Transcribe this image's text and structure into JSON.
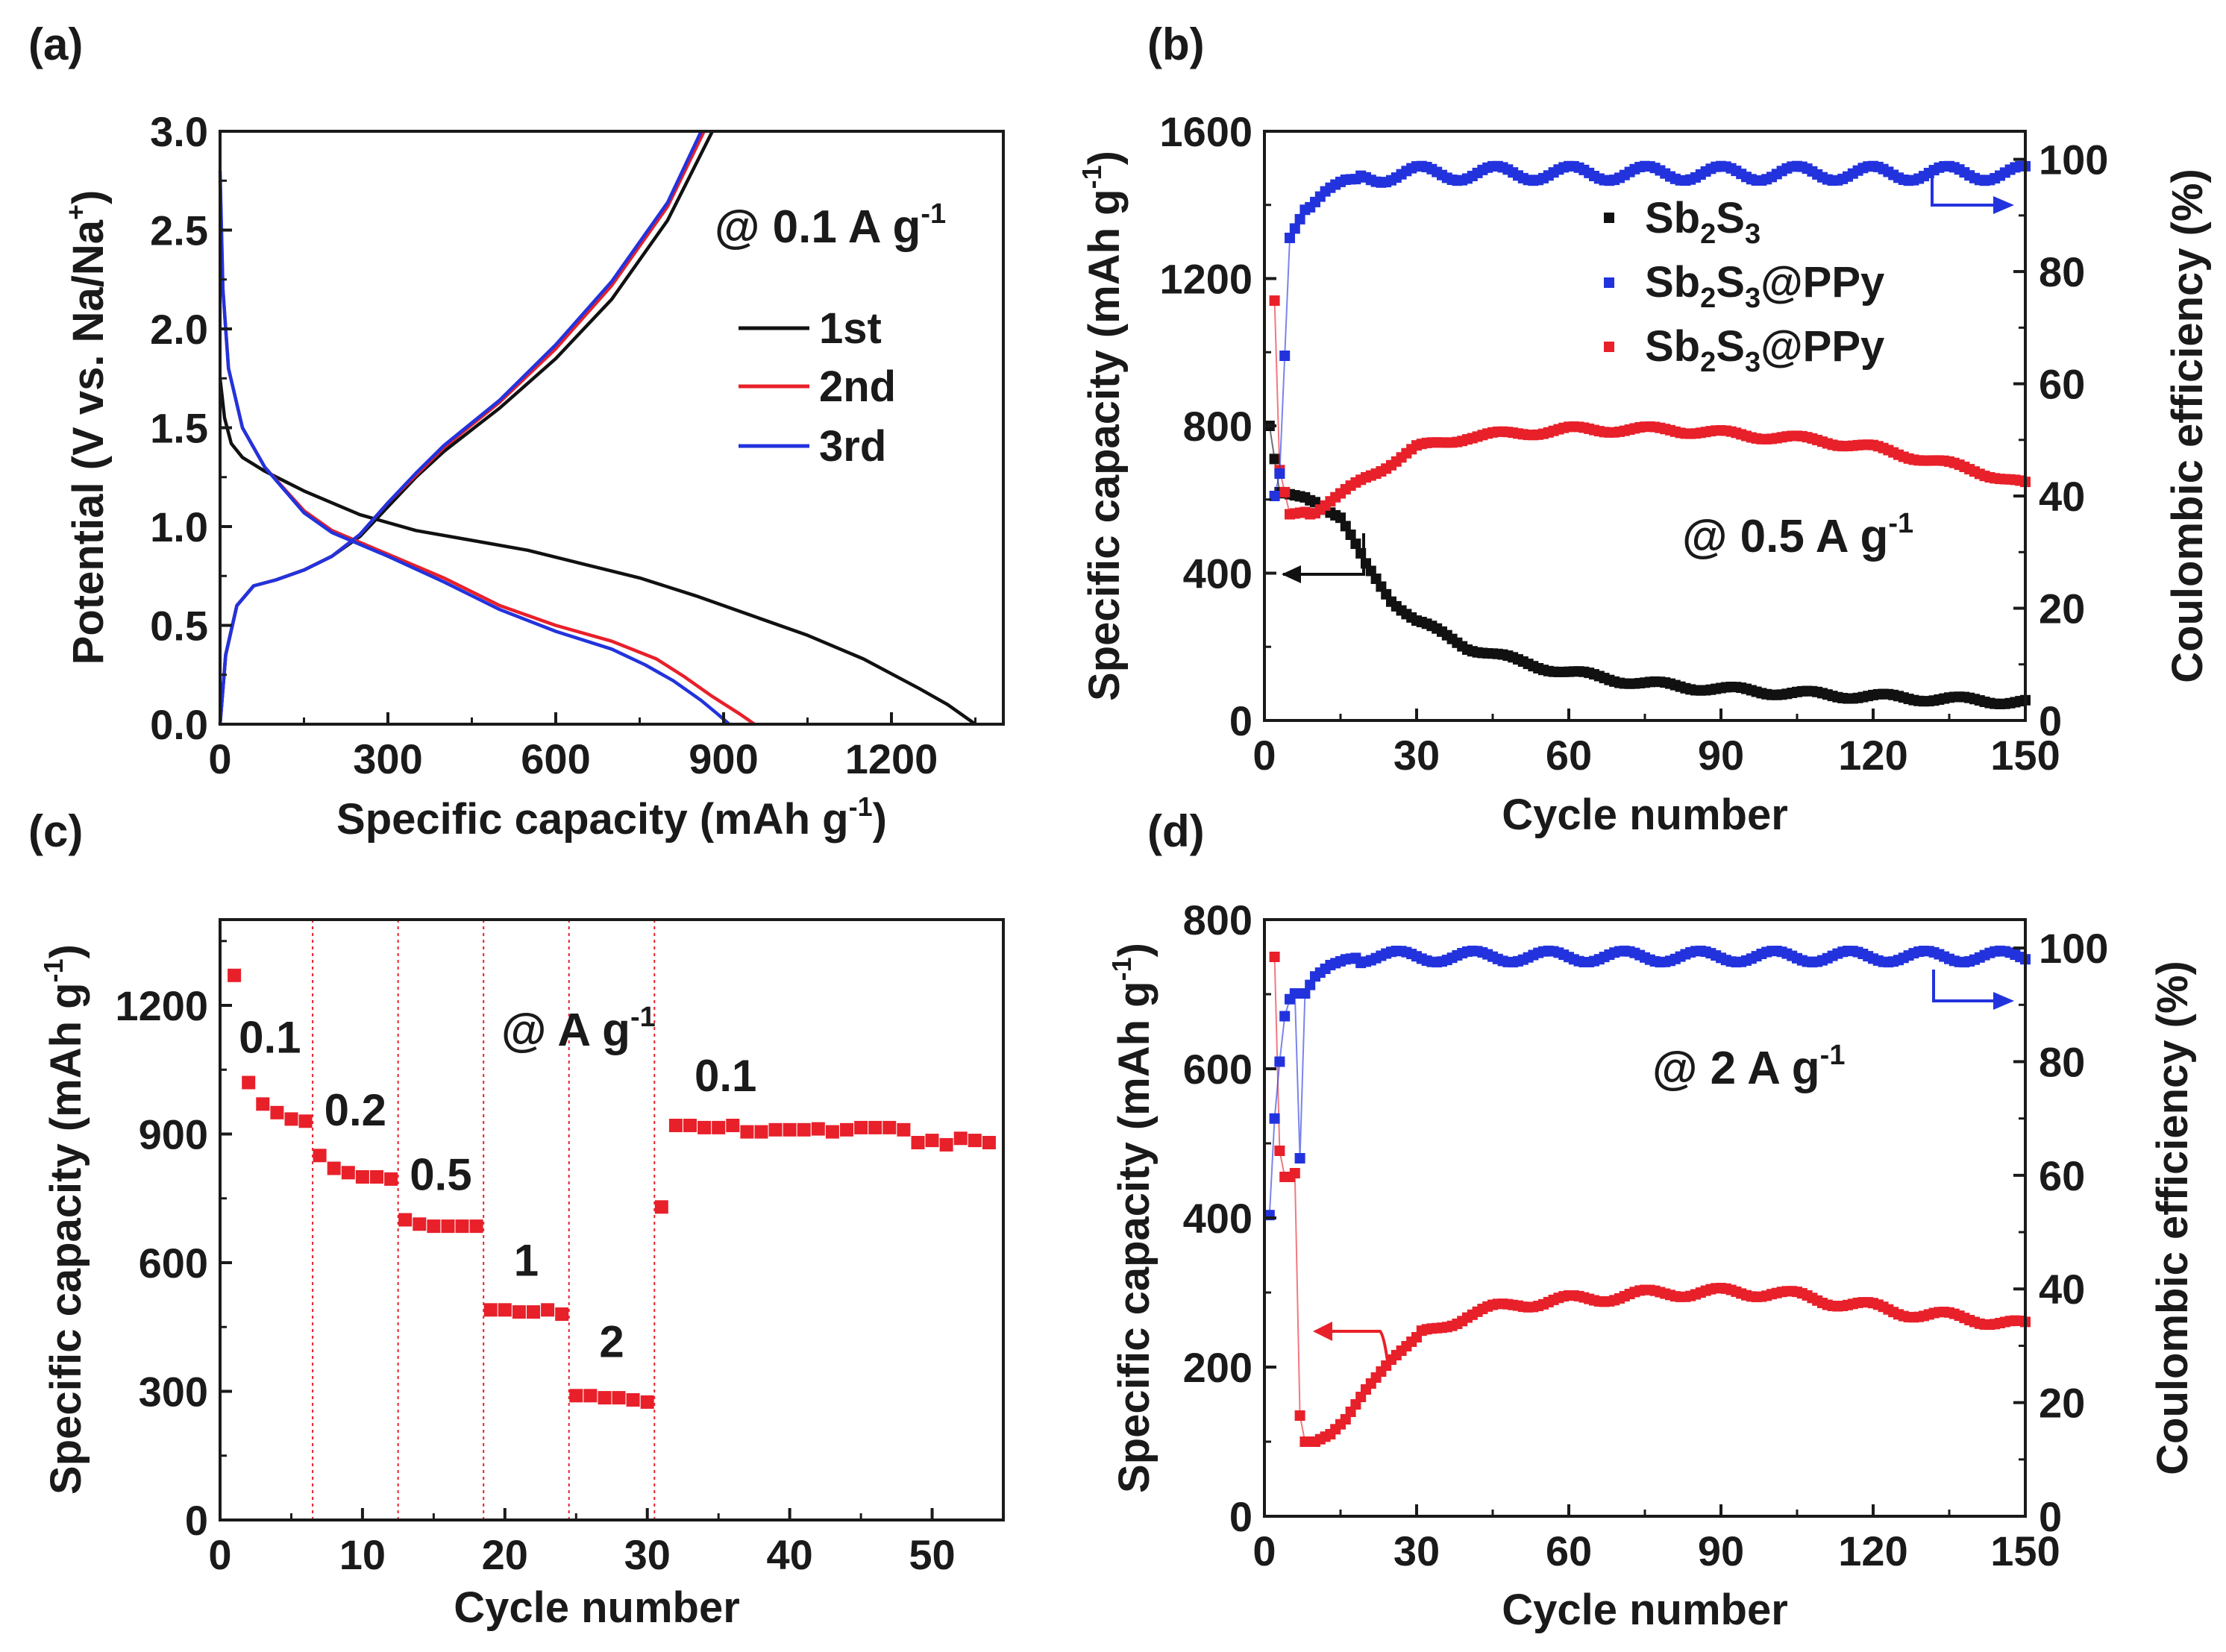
{
  "chart_data": [
    {
      "panel": "(a)",
      "type": "line",
      "xlabel": "Specific capacity (mAh g",
      "xlabel_sup": "-1",
      "xlabel_end": ")",
      "ylabel": "Potential (V vs. Na/Na",
      "ylabel_sup": "+",
      "ylabel_end": ")",
      "xlim": [
        0,
        1400
      ],
      "ylim": [
        0,
        3.0
      ],
      "xticks": [
        0,
        300,
        600,
        900,
        1200
      ],
      "yticks": [
        0.0,
        0.5,
        1.0,
        1.5,
        2.0,
        2.5,
        3.0
      ],
      "annotation": "@ 0.1 A g",
      "annotation_sup": "-1",
      "legend": [
        "1st",
        "2nd",
        "3rd"
      ],
      "series": [
        {
          "name": "1st discharge",
          "legend_label": "1st",
          "color": "#111111",
          "x": [
            0,
            8,
            20,
            40,
            80,
            150,
            250,
            350,
            450,
            550,
            650,
            750,
            850,
            950,
            1050,
            1150,
            1250,
            1300,
            1350
          ],
          "y": [
            1.75,
            1.55,
            1.42,
            1.35,
            1.28,
            1.18,
            1.06,
            0.98,
            0.93,
            0.88,
            0.81,
            0.74,
            0.65,
            0.55,
            0.45,
            0.33,
            0.18,
            0.1,
            0.0
          ]
        },
        {
          "name": "1st charge",
          "legend_label": "1st",
          "color": "#111111",
          "x": [
            0,
            10,
            30,
            60,
            100,
            150,
            200,
            250,
            300,
            350,
            400,
            500,
            600,
            700,
            800,
            880
          ],
          "y": [
            0.0,
            0.35,
            0.6,
            0.7,
            0.73,
            0.78,
            0.85,
            0.95,
            1.1,
            1.25,
            1.38,
            1.6,
            1.85,
            2.15,
            2.55,
            3.0
          ]
        },
        {
          "name": "2nd discharge",
          "legend_label": "2nd",
          "color": "#e8202a",
          "x": [
            0,
            5,
            15,
            40,
            80,
            150,
            200,
            250,
            300,
            400,
            500,
            600,
            700,
            780,
            830,
            880,
            930,
            955
          ],
          "y": [
            2.75,
            2.2,
            1.8,
            1.5,
            1.3,
            1.08,
            0.98,
            0.92,
            0.86,
            0.74,
            0.6,
            0.5,
            0.42,
            0.33,
            0.24,
            0.14,
            0.05,
            0.0
          ]
        },
        {
          "name": "2nd charge",
          "legend_label": "2nd",
          "color": "#e8202a",
          "x": [
            0,
            10,
            30,
            60,
            100,
            150,
            200,
            250,
            300,
            350,
            400,
            500,
            600,
            700,
            800,
            865
          ],
          "y": [
            0.0,
            0.35,
            0.6,
            0.7,
            0.73,
            0.78,
            0.85,
            0.96,
            1.12,
            1.26,
            1.4,
            1.63,
            1.9,
            2.22,
            2.62,
            3.0
          ]
        },
        {
          "name": "3rd discharge",
          "legend_label": "3rd",
          "color": "#2233dd",
          "x": [
            0,
            5,
            15,
            40,
            80,
            150,
            200,
            250,
            300,
            400,
            500,
            600,
            700,
            760,
            810,
            860,
            890,
            910
          ],
          "y": [
            2.8,
            2.2,
            1.8,
            1.5,
            1.3,
            1.07,
            0.97,
            0.91,
            0.85,
            0.72,
            0.58,
            0.47,
            0.38,
            0.3,
            0.22,
            0.12,
            0.05,
            0.0
          ]
        },
        {
          "name": "3rd charge",
          "legend_label": "3rd",
          "color": "#2233dd",
          "x": [
            0,
            10,
            30,
            60,
            100,
            150,
            200,
            250,
            300,
            350,
            400,
            500,
            600,
            700,
            800,
            860
          ],
          "y": [
            0.0,
            0.35,
            0.6,
            0.7,
            0.73,
            0.78,
            0.85,
            0.96,
            1.12,
            1.27,
            1.41,
            1.64,
            1.92,
            2.24,
            2.64,
            3.0
          ]
        }
      ]
    },
    {
      "panel": "(b)",
      "type": "scatter",
      "xlabel": "Cycle number",
      "ylabel": "Specific capacity (mAh g",
      "ylabel_sup": "-1",
      "ylabel_end": ")",
      "y2label": "Coulombic efficiency (%)",
      "xlim": [
        0,
        150
      ],
      "ylim": [
        0,
        1600
      ],
      "y2lim": [
        0,
        105
      ],
      "xticks": [
        0,
        30,
        60,
        90,
        120,
        150
      ],
      "yticks": [
        0,
        400,
        800,
        1200,
        1600
      ],
      "y2ticks": [
        0,
        20,
        40,
        60,
        80,
        100
      ],
      "annotation": "@ 0.5 A g",
      "annotation_sup": "-1",
      "legend": [
        "Sb2S3",
        "Sb2S3@PPy",
        "Sb2S3@PPy"
      ],
      "series": [
        {
          "name": "Sb2S3",
          "legend": {
            "base": "Sb",
            "s1": "2",
            "mid": "S",
            "s2": "3",
            "tail": ""
          },
          "color": "#111111",
          "axis": "left",
          "keyframes": {
            "x": [
              1,
              3,
              10,
              15,
              20,
              25,
              30,
              40,
              50,
              60,
              75,
              90,
              110,
              130,
              150
            ],
            "y": [
              800,
              620,
              600,
              550,
              420,
              330,
              270,
              200,
              160,
              130,
              100,
              85,
              70,
              60,
              50
            ]
          }
        },
        {
          "name": "Sb2S3@PPy capacity",
          "legend": {
            "base": "Sb",
            "s1": "2",
            "mid": "S",
            "s2": "3",
            "tail": "@PPy"
          },
          "color": "#e8202a",
          "axis": "left",
          "keyframes": {
            "x": [
              2,
              3,
              5,
              10,
              15,
              20,
              25,
              30,
              40,
              50,
              60,
              70,
              80,
              90,
              100,
              110,
              120,
              130,
              140,
              150
            ],
            "y": [
              1140,
              680,
              560,
              570,
              610,
              660,
              700,
              740,
              770,
              780,
              790,
              790,
              790,
              780,
              770,
              760,
              740,
              710,
              680,
              640
            ]
          }
        },
        {
          "name": "Sb2S3@PPy CE",
          "legend": {
            "base": "Sb",
            "s1": "2",
            "mid": "S",
            "s2": "3",
            "tail": "@PPy"
          },
          "color": "#2233dd",
          "axis": "right",
          "keyframes": {
            "x": [
              2,
              3,
              5,
              8,
              12,
              16,
              20,
              30,
              150
            ],
            "y": [
              40,
              44,
              86,
              91,
              94,
              96,
              97,
              97.5,
              97.5
            ]
          }
        }
      ]
    },
    {
      "panel": "(c)",
      "type": "scatter",
      "xlabel": "Cycle number",
      "ylabel": "Specific capacity (mAh g",
      "ylabel_sup": "-1",
      "ylabel_end": ")",
      "xlim": [
        0,
        55
      ],
      "ylim": [
        0,
        1400
      ],
      "xticks": [
        0,
        10,
        20,
        30,
        40,
        50
      ],
      "yticks": [
        0,
        300,
        600,
        900,
        1200
      ],
      "annotation": "@ A g",
      "annotation_sup": "-1",
      "rate_labels": [
        {
          "text": "0.1",
          "x": 3.5,
          "y": 1090
        },
        {
          "text": "0.2",
          "x": 9.5,
          "y": 920
        },
        {
          "text": "0.5",
          "x": 15.5,
          "y": 770
        },
        {
          "text": "1",
          "x": 21.5,
          "y": 570
        },
        {
          "text": "2",
          "x": 27.5,
          "y": 380
        },
        {
          "text": "0.1",
          "x": 35.5,
          "y": 1000
        }
      ],
      "dividers": [
        6.5,
        12.5,
        18.5,
        24.5,
        30.5
      ],
      "series": [
        {
          "name": "Sb2S3@PPy",
          "color": "#e8202a",
          "x": [
            1,
            2,
            3,
            4,
            5,
            6,
            7,
            8,
            9,
            10,
            11,
            12,
            13,
            14,
            15,
            16,
            17,
            18,
            19,
            20,
            21,
            22,
            23,
            24,
            25,
            26,
            27,
            28,
            29,
            30,
            31,
            32,
            33,
            34,
            35,
            36,
            37,
            38,
            39,
            40,
            41,
            42,
            43,
            44,
            45,
            46,
            47,
            48,
            49,
            50,
            51,
            52,
            53,
            54
          ],
          "y": [
            1270,
            1020,
            970,
            950,
            935,
            930,
            850,
            820,
            810,
            800,
            800,
            795,
            700,
            690,
            685,
            685,
            685,
            685,
            490,
            490,
            485,
            485,
            490,
            480,
            290,
            290,
            285,
            285,
            280,
            275,
            730,
            920,
            920,
            915,
            915,
            920,
            905,
            905,
            910,
            910,
            910,
            912,
            905,
            910,
            915,
            915,
            915,
            910,
            880,
            885,
            875,
            890,
            885,
            880
          ]
        }
      ]
    },
    {
      "panel": "(d)",
      "type": "scatter",
      "xlabel": "Cycle number",
      "ylabel": "Specific capacity (mAh g",
      "ylabel_sup": "-1",
      "ylabel_end": ")",
      "y2label": "Coulombic efficiency (%)",
      "xlim": [
        0,
        150
      ],
      "ylim": [
        0,
        800
      ],
      "y2lim": [
        0,
        105
      ],
      "xticks": [
        0,
        30,
        60,
        90,
        120,
        150
      ],
      "yticks": [
        0,
        200,
        400,
        600,
        800
      ],
      "y2ticks": [
        0,
        20,
        40,
        60,
        80,
        100
      ],
      "annotation": "@ 2 A g",
      "annotation_sup": "-1",
      "series": [
        {
          "name": "Sb2S3@PPy capacity",
          "color": "#e8202a",
          "axis": "left",
          "keyframes": {
            "x": [
              2,
              3,
              4,
              5,
              6,
              7,
              8,
              10,
              13,
              16,
              20,
              25,
              30,
              40,
              50,
              60,
              70,
              80,
              90,
              100,
              110,
              120,
              130,
              140,
              150
            ],
            "y": [
              750,
              490,
              455,
              455,
              460,
              135,
              100,
              100,
              110,
              130,
              170,
              210,
              240,
              270,
              285,
              290,
              295,
              300,
              300,
              300,
              290,
              280,
              270,
              265,
              255
            ]
          }
        },
        {
          "name": "Sb2S3@PPy CE",
          "color": "#2233dd",
          "axis": "right",
          "keyframes": {
            "x": [
              1,
              2,
              3,
              4,
              5,
              6,
              7,
              8,
              10,
              13,
              16,
              20,
              30,
              150
            ],
            "y": [
              53,
              70,
              80,
              88,
              91,
              92,
              63,
              92,
              95,
              97,
              98,
              98.5,
              98.5,
              98.5
            ]
          }
        }
      ]
    }
  ]
}
